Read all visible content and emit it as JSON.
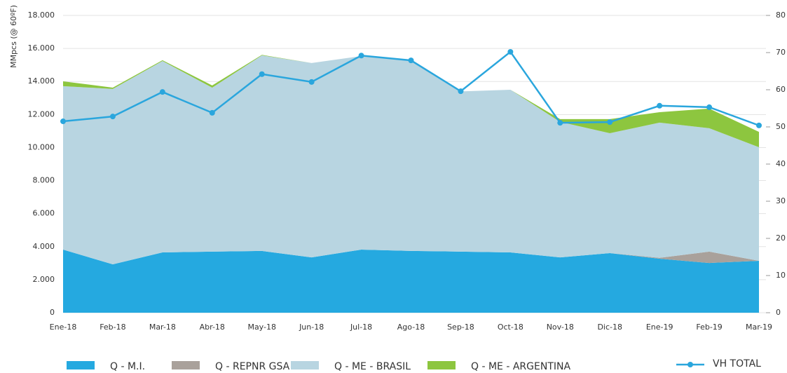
{
  "chart_data": {
    "type": "stacked_area_line",
    "y_label": "MMpcs (@ 60ºF)",
    "categories": [
      "Ene-18",
      "Feb-18",
      "Mar-18",
      "Abr-18",
      "May-18",
      "Jun-18",
      "Jul-18",
      "Ago-18",
      "Sep-18",
      "Oct-18",
      "Nov-18",
      "Dic-18",
      "Ene-19",
      "Feb-19",
      "Mar-19"
    ],
    "series": [
      {
        "name": "Q - M.I.",
        "color": "#25a9e0",
        "values": [
          3820,
          2930,
          3650,
          3700,
          3740,
          3350,
          3820,
          3740,
          3700,
          3650,
          3350,
          3610,
          3270,
          3010,
          3140
        ]
      },
      {
        "name": "Q - REPNR GSA",
        "color": "#a9a19b",
        "values": [
          0,
          0,
          0,
          0,
          0,
          0,
          0,
          0,
          0,
          0,
          0,
          0,
          50,
          690,
          0
        ]
      },
      {
        "name": "Q - ME - BRASIL",
        "color": "#b8d5e1",
        "values": [
          9900,
          10620,
          11590,
          9930,
          11840,
          11770,
          11720,
          11550,
          9700,
          9850,
          8200,
          7260,
          8190,
          7470,
          6880
        ]
      },
      {
        "name": "Q - ME - ARGENTINA",
        "color": "#8dc63f",
        "values": [
          290,
          80,
          50,
          130,
          30,
          0,
          0,
          0,
          0,
          0,
          170,
          850,
          630,
          1190,
          930
        ]
      },
      {
        "name": "VH TOTAL",
        "color": "#2aa6dd",
        "axis": "y2",
        "values": [
          51.5,
          52.8,
          59.4,
          53.8,
          64.2,
          62.1,
          69.2,
          67.9,
          59.6,
          70.2,
          51.1,
          51.3,
          55.7,
          55.3,
          50.4
        ]
      }
    ],
    "ylim": [
      0,
      18000
    ],
    "yticks": [
      0,
      {
        "value": 2000,
        "label": "2.000"
      },
      {
        "value": 4000,
        "label": "4.000"
      },
      {
        "value": 6000,
        "label": "6.000"
      },
      {
        "value": 8000,
        "label": "8.000"
      },
      {
        "value": 10000,
        "label": "10.000"
      },
      {
        "value": 12000,
        "label": "12.000"
      },
      {
        "value": 14000,
        "label": "14.000"
      },
      {
        "value": 16000,
        "label": "16.000"
      },
      {
        "value": 18000,
        "label": "18.000"
      }
    ],
    "y2lim": [
      0,
      80
    ],
    "y2ticks": [
      0,
      10,
      20,
      30,
      40,
      50,
      60,
      70,
      80
    ],
    "grid": true
  }
}
